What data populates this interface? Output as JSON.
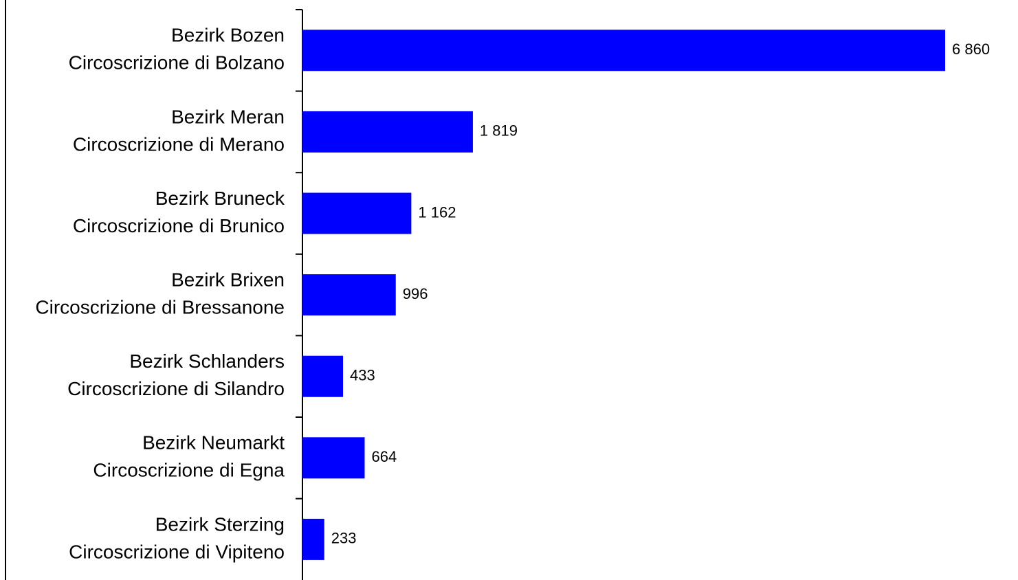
{
  "chart_data": {
    "type": "barh",
    "categories": [
      [
        "Bezirk Bozen",
        "Circoscrizione di Bolzano"
      ],
      [
        "Bezirk Meran",
        "Circoscrizione di Merano"
      ],
      [
        "Bezirk Bruneck",
        "Circoscrizione di Brunico"
      ],
      [
        "Bezirk Brixen",
        "Circoscrizione di Bressanone"
      ],
      [
        "Bezirk Schlanders",
        "Circoscrizione di Silandro"
      ],
      [
        "Bezirk Neumarkt",
        "Circoscrizione di Egna"
      ],
      [
        "Bezirk Sterzing",
        "Circoscrizione di Vipiteno"
      ]
    ],
    "values": [
      6860,
      1819,
      1162,
      996,
      433,
      664,
      233
    ],
    "value_labels": [
      "6 860",
      "1 819",
      "1 162",
      "996",
      "433",
      "664",
      "233"
    ],
    "color": "#0000ff"
  }
}
